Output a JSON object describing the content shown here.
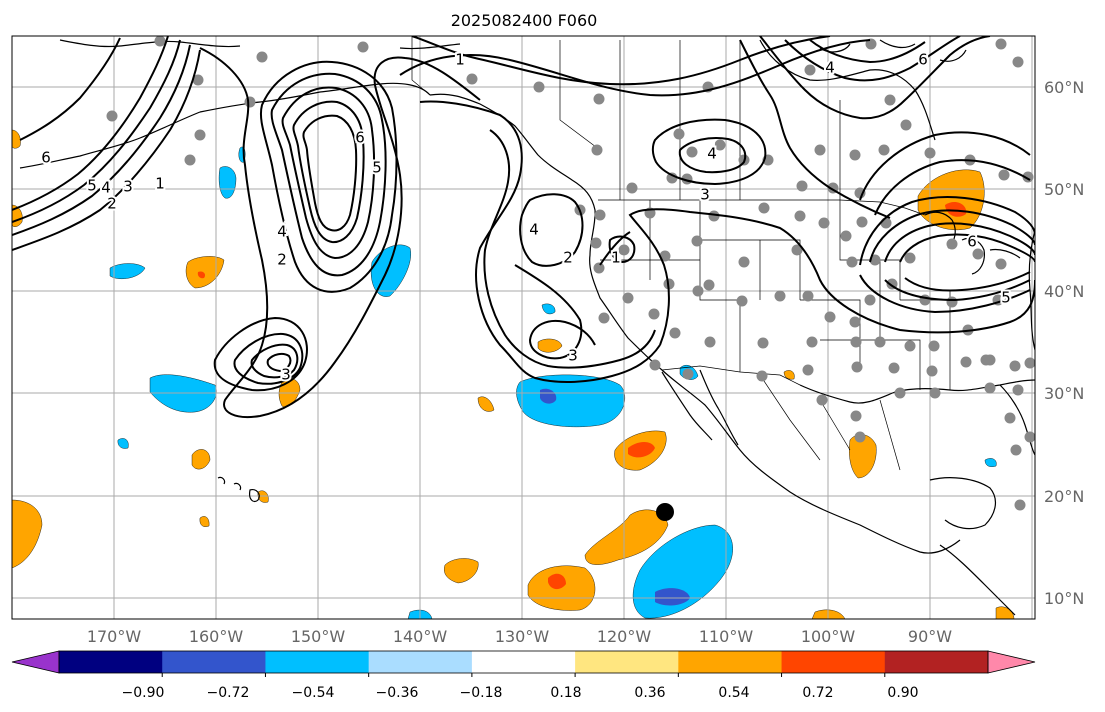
{
  "title": "2025082400 F060",
  "map": {
    "lon_labels": [
      "170°W",
      "160°W",
      "150°W",
      "140°W",
      "130°W",
      "120°W",
      "110°W",
      "100°W",
      "90°W"
    ],
    "lat_labels": [
      "60°N",
      "50°N",
      "40°N",
      "30°N",
      "20°N",
      "10°N"
    ]
  },
  "contour_labels": [
    "1",
    "2",
    "3",
    "4",
    "5",
    "6"
  ],
  "colorbar": {
    "tick_labels": [
      "−0.90",
      "−0.72",
      "−0.54",
      "−0.36",
      "−0.18",
      "0.18",
      "0.36",
      "0.54",
      "0.72",
      "0.90"
    ],
    "colors": [
      "#9933cc",
      "#000080",
      "#3355cc",
      "#00bfff",
      "#aaddff",
      "#ffffff",
      "#ffe680",
      "#ffa500",
      "#ff4500",
      "#b22222",
      "#ff88aa"
    ]
  },
  "marker_color": "#888888"
}
